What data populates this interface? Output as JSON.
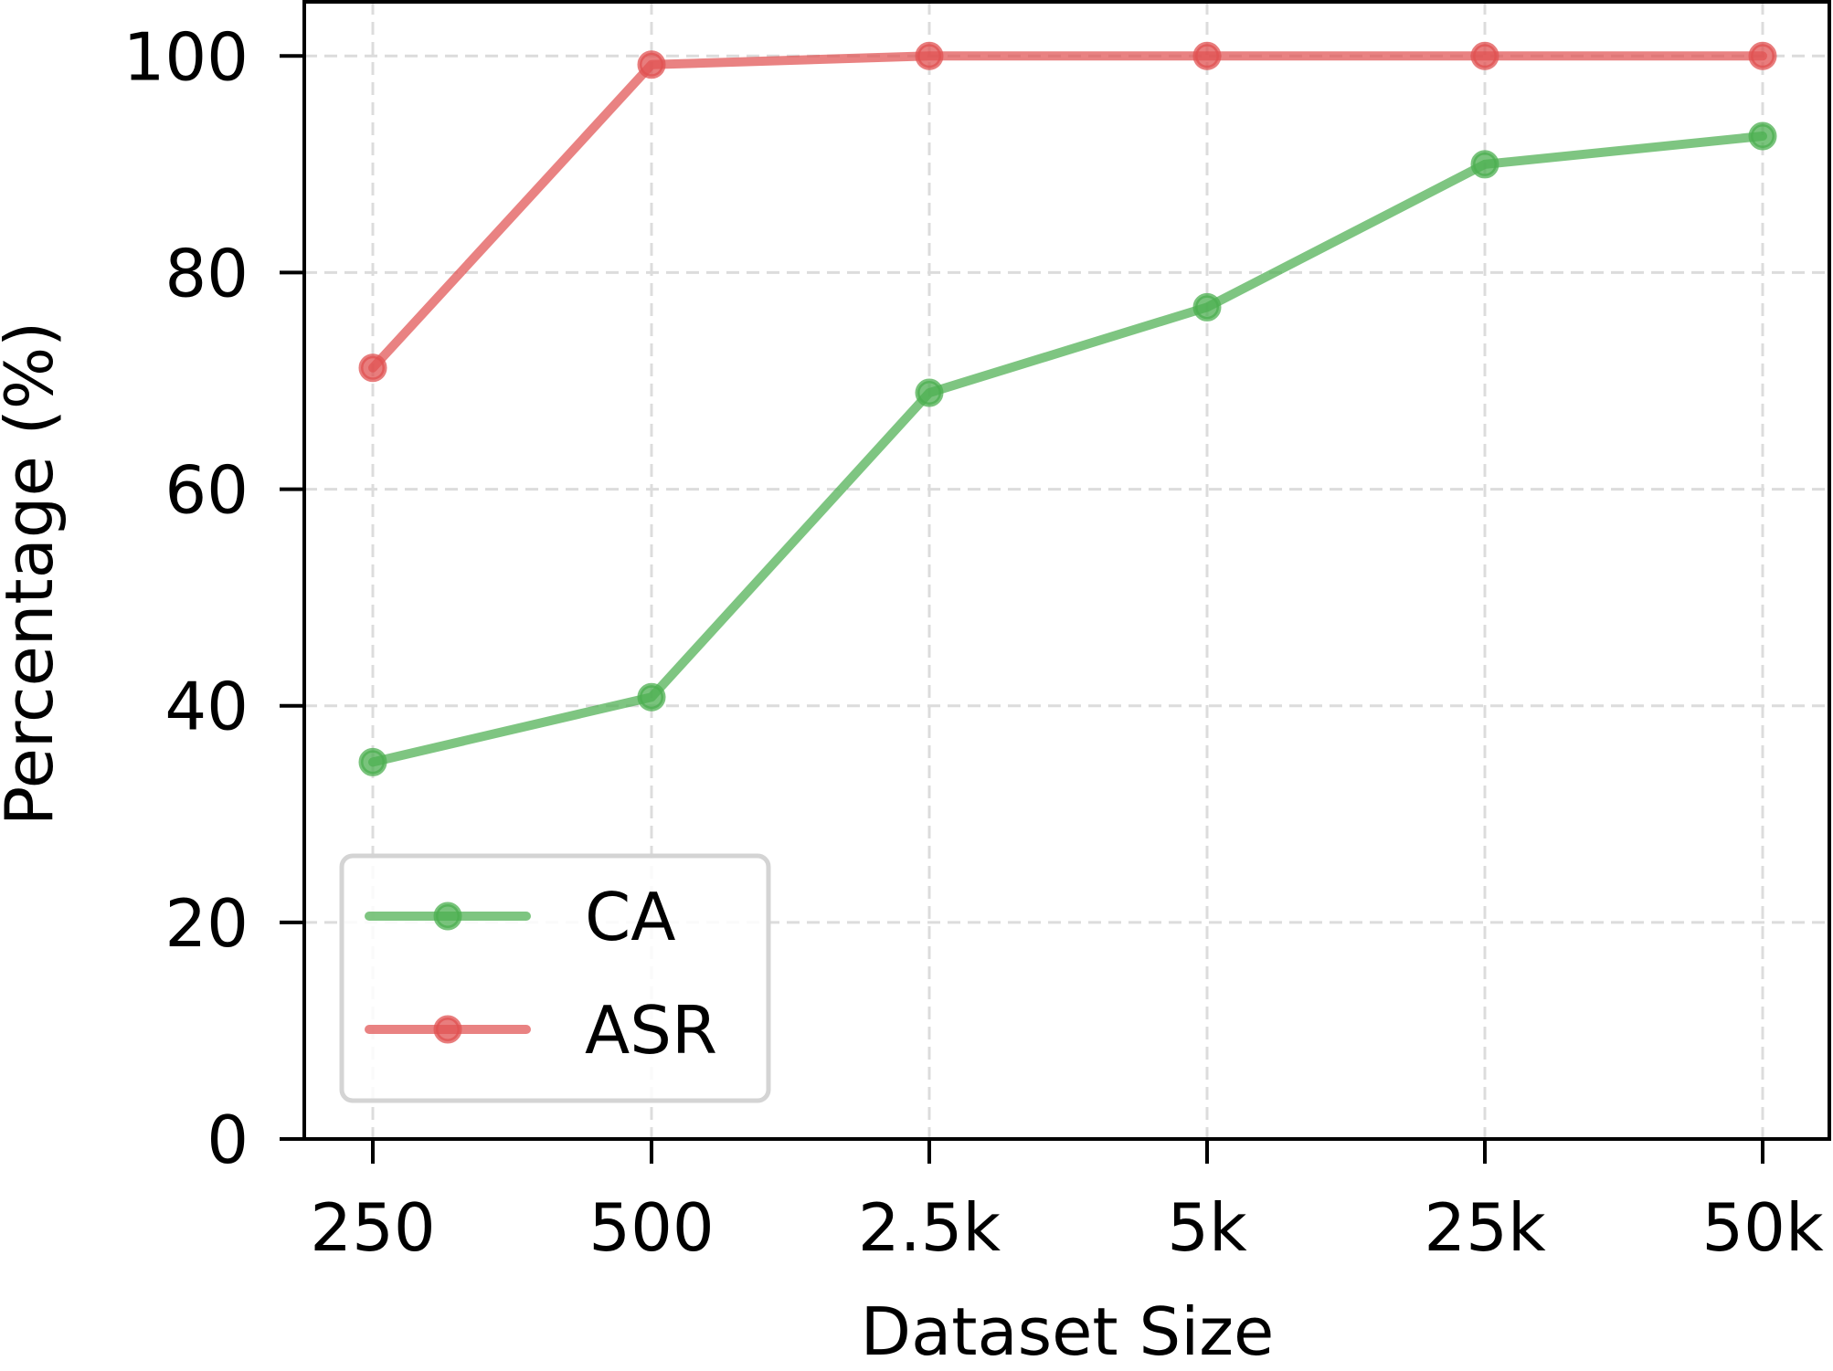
{
  "chart_data": {
    "type": "line",
    "title": "",
    "xlabel": "Dataset Size",
    "ylabel": "Percentage (%)",
    "categories": [
      "250",
      "500",
      "2.5k",
      "5k",
      "25k",
      "50k"
    ],
    "ylim": [
      0,
      105
    ],
    "yticks": [
      0,
      20,
      40,
      60,
      80,
      100
    ],
    "grid": true,
    "legend_position": "lower-left",
    "series": [
      {
        "name": "CA",
        "color": "#4caf50",
        "values": [
          34.8,
          40.8,
          68.9,
          76.8,
          90.0,
          92.6
        ]
      },
      {
        "name": "ASR",
        "color": "#e05252",
        "values": [
          71.2,
          99.2,
          100.0,
          100.0,
          100.0,
          100.0
        ]
      }
    ]
  }
}
